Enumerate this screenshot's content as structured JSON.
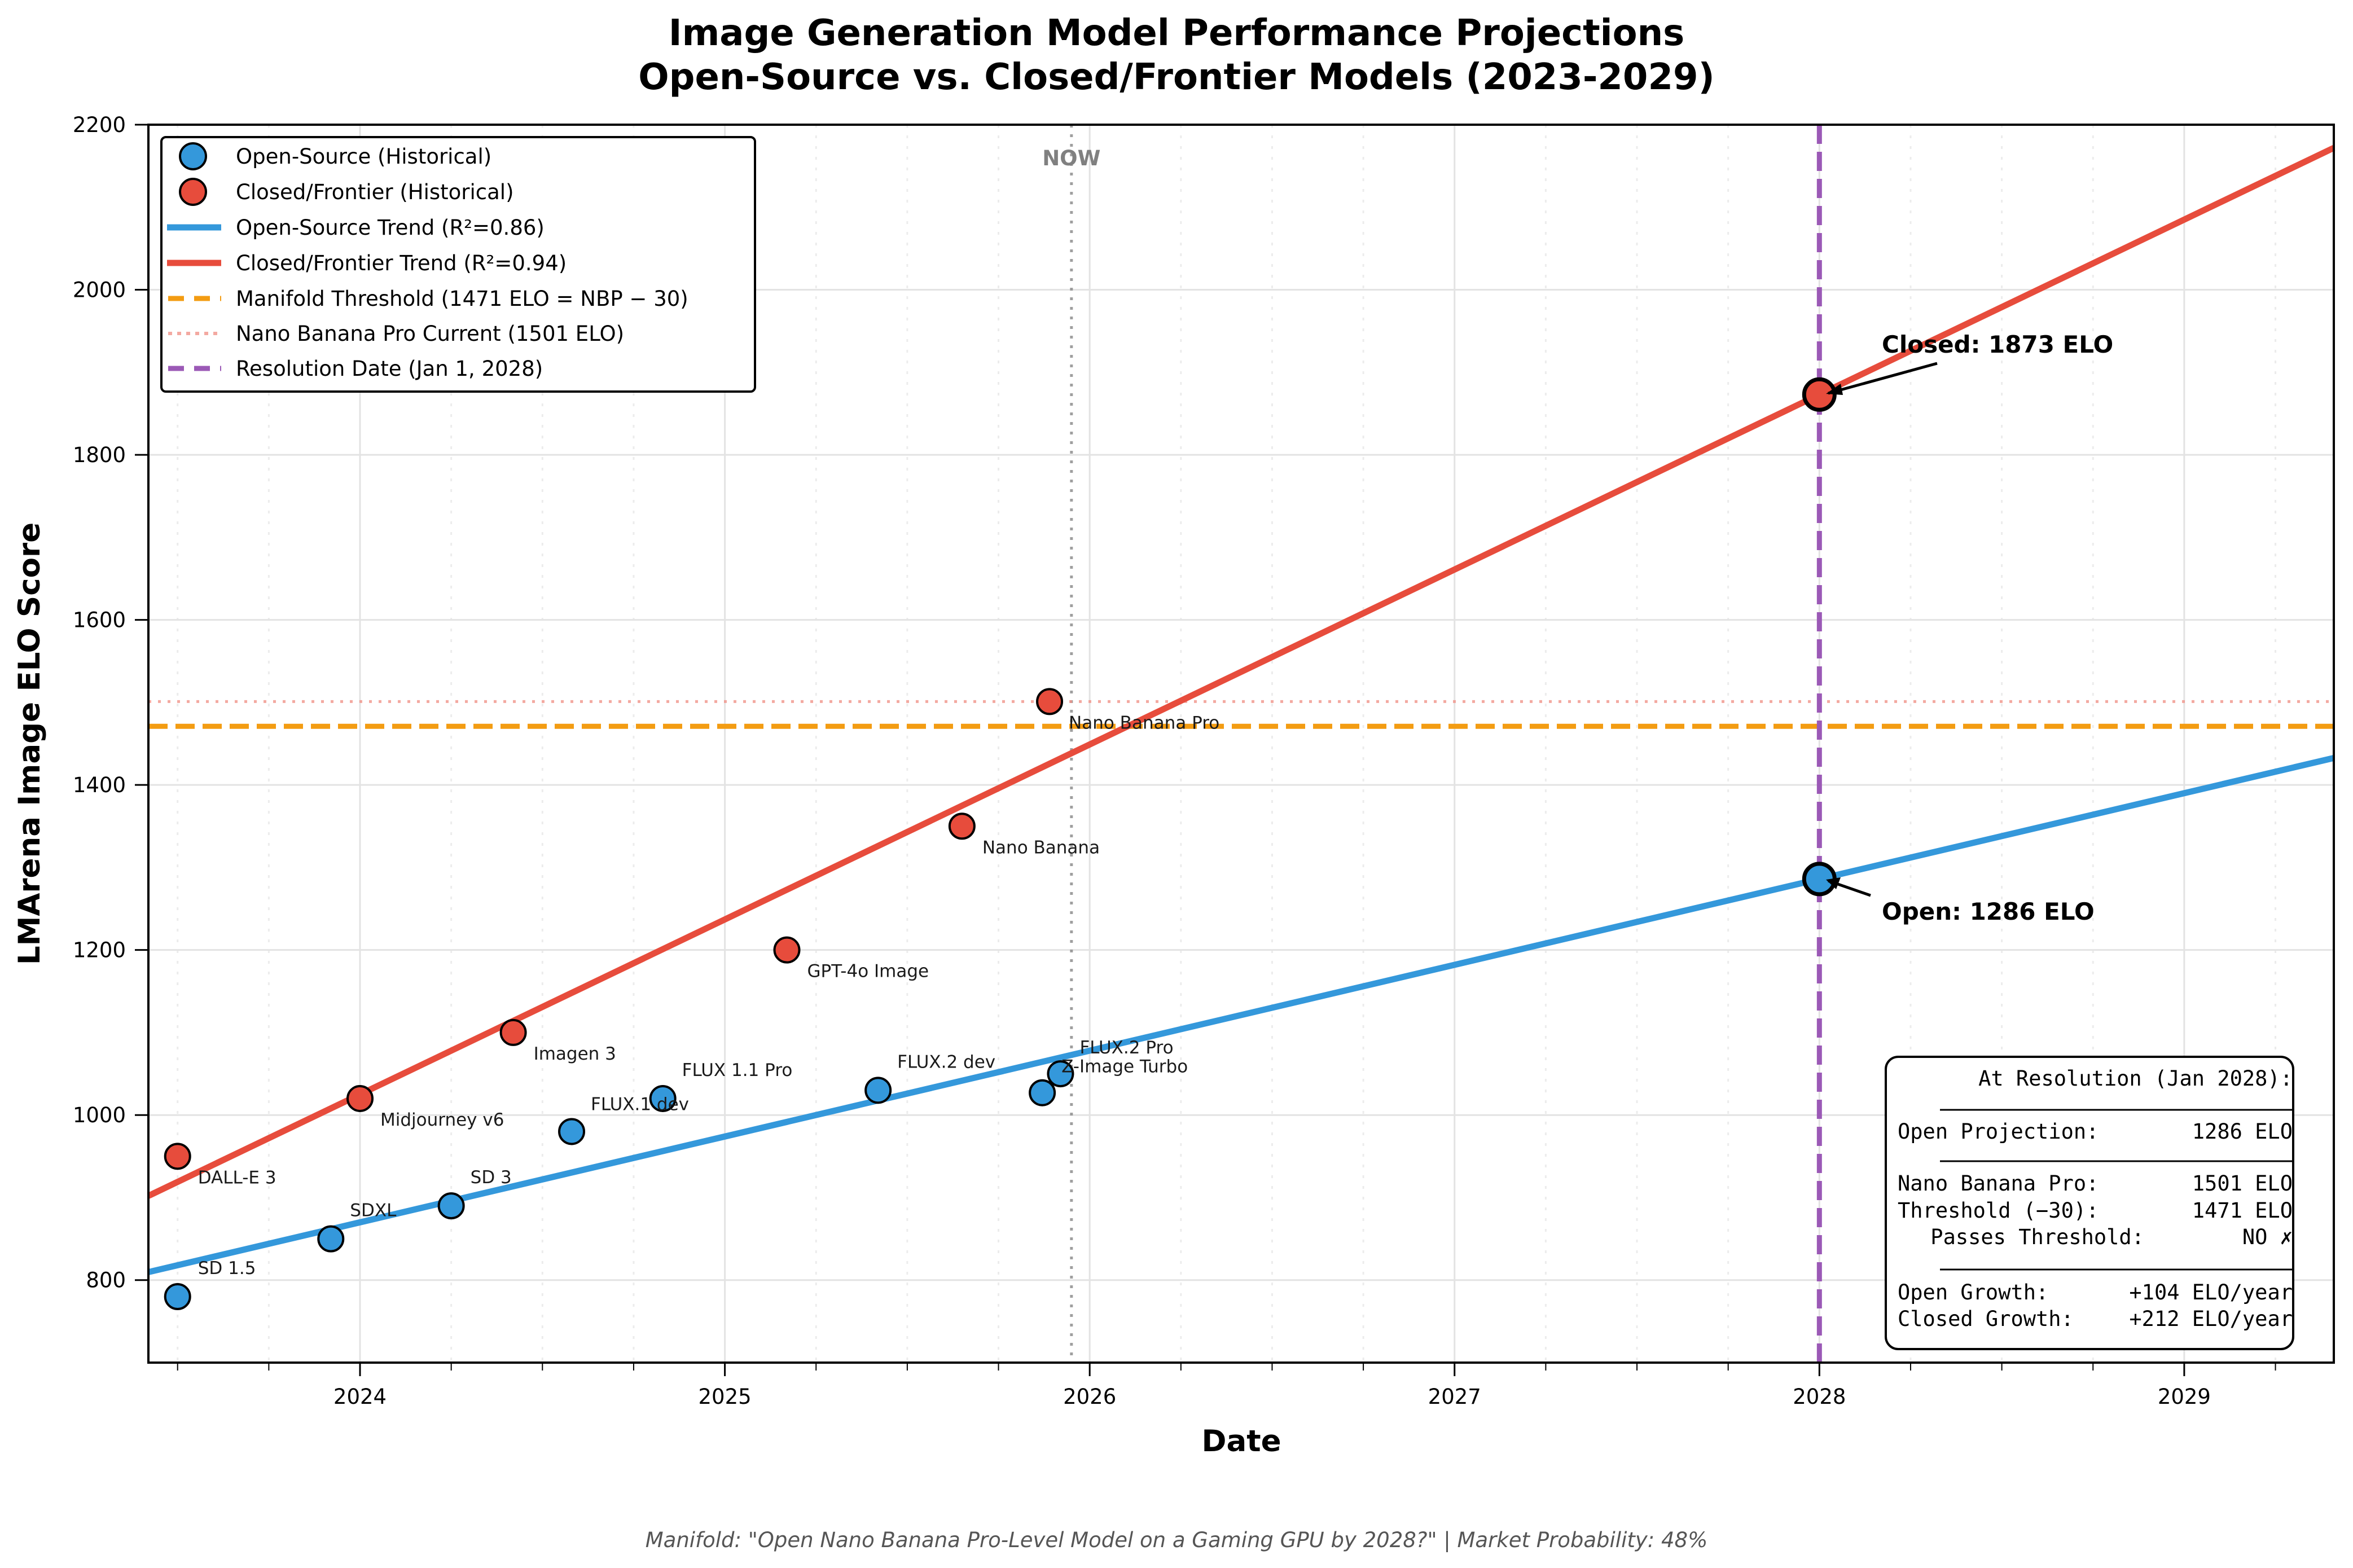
{
  "chart_data": {
    "type": "scatter",
    "title": "Image Generation Model Performance Projections",
    "subtitle": "Open-Source vs. Closed/Frontier Models (2023-2029)",
    "xlabel": "Date",
    "ylabel": "LMArena Image ELO Score",
    "xlim": [
      2023.42,
      2029.41
    ],
    "ylim": [
      700,
      2200
    ],
    "x_ticks": [
      2024,
      2025,
      2026,
      2027,
      2028,
      2029
    ],
    "x_tick_labels": [
      "2024",
      "2025",
      "2026",
      "2027",
      "2028",
      "2029"
    ],
    "y_ticks": [
      800,
      1000,
      1200,
      1400,
      1600,
      1800,
      2000,
      2200
    ],
    "y_tick_labels": [
      "800",
      "1000",
      "1200",
      "1400",
      "1600",
      "1800",
      "2000",
      "2200"
    ],
    "grid": true,
    "legend_position": "top-left",
    "series": [
      {
        "name": "Open-Source (Historical)",
        "kind": "scatter",
        "color": "#3498db",
        "points": [
          {
            "label": "SD 1.5",
            "x": 2023.5,
            "y": 780
          },
          {
            "label": "SDXL",
            "x": 2023.92,
            "y": 850
          },
          {
            "label": "SD 3",
            "x": 2024.25,
            "y": 890
          },
          {
            "label": "FLUX.1 dev",
            "x": 2024.58,
            "y": 980
          },
          {
            "label": "FLUX 1.1 Pro",
            "x": 2024.83,
            "y": 1020
          },
          {
            "label": "FLUX.2 dev",
            "x": 2025.42,
            "y": 1030
          },
          {
            "label": "Z-Image Turbo",
            "x": 2025.87,
            "y": 1027
          },
          {
            "label": "FLUX.2 Pro",
            "x": 2025.92,
            "y": 1050
          }
        ]
      },
      {
        "name": "Closed/Frontier (Historical)",
        "kind": "scatter",
        "color": "#e74c3c",
        "points": [
          {
            "label": "DALL-E 3",
            "x": 2023.5,
            "y": 950
          },
          {
            "label": "Midjourney v6",
            "x": 2024.0,
            "y": 1020
          },
          {
            "label": "Imagen 3",
            "x": 2024.42,
            "y": 1100
          },
          {
            "label": "GPT-4o Image",
            "x": 2025.17,
            "y": 1200
          },
          {
            "label": "Nano Banana",
            "x": 2025.65,
            "y": 1350
          },
          {
            "label": "Nano Banana Pro",
            "x": 2025.89,
            "y": 1501
          }
        ]
      },
      {
        "name": "Open-Source Trend (R²=0.86)",
        "kind": "line",
        "color": "#3498db",
        "anchor_x": 2028.0,
        "anchor_y": 1286,
        "slope_per_year": 104
      },
      {
        "name": "Closed/Frontier Trend (R²=0.94)",
        "kind": "line",
        "color": "#e74c3c",
        "anchor_x": 2028.0,
        "anchor_y": 1873,
        "slope_per_year": 212
      },
      {
        "name": "Manifold Threshold (1471 ELO = NBP − 30)",
        "kind": "hline",
        "color": "#f39c12",
        "y": 1471
      },
      {
        "name": "Nano Banana Pro Current (1501 ELO)",
        "kind": "hline",
        "color": "#f1948a",
        "y": 1501
      },
      {
        "name": "Resolution Date (Jan 1, 2028)",
        "kind": "vline",
        "color": "#9b59b6",
        "x": 2028.0
      }
    ],
    "now_line": {
      "label": "NOW",
      "x": 2025.95,
      "color": "#808080"
    },
    "projections": [
      {
        "label": "Closed: 1873 ELO",
        "x": 2028.0,
        "y": 1873,
        "color": "#e74c3c"
      },
      {
        "label": "Open: 1286 ELO",
        "x": 2028.0,
        "y": 1286,
        "color": "#3498db"
      }
    ],
    "stats_box": {
      "header": "At Resolution (Jan 2028):",
      "lines": [
        {
          "key": "Open Projection:",
          "value": "1286 ELO"
        },
        {
          "key": "Nano Banana Pro:",
          "value": "1501 ELO"
        },
        {
          "key": "Threshold (−30):",
          "value": "1471 ELO"
        },
        {
          "key": "Passes Threshold:",
          "value": "NO ✗"
        },
        {
          "key": "Open Growth:",
          "value": "+104 ELO/year"
        },
        {
          "key": "Closed Growth:",
          "value": "+212 ELO/year"
        }
      ]
    },
    "footer": "Manifold: \"Open Nano Banana Pro-Level Model on a Gaming GPU by 2028?\" | Market Probability: 48%"
  }
}
